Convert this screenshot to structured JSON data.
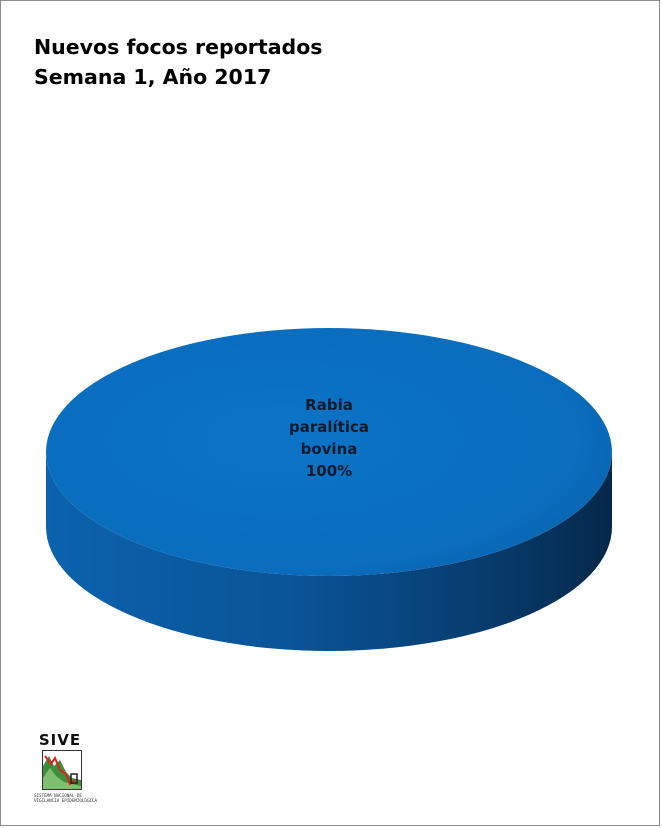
{
  "chart_data": {
    "type": "pie",
    "title": [
      "Nuevos focos reportados",
      "Semana 1, Año 2017"
    ],
    "slices": [
      {
        "label_lines": [
          "Rabia",
          "paralítica",
          "bovina"
        ],
        "value": 100,
        "value_label": "100%",
        "color": "#0a6ec0"
      }
    ],
    "legend": "none",
    "style": "3d"
  },
  "logo": {
    "name": "SIVE",
    "caption_lines": [
      "SISTEMA NACIONAL DE",
      "VIGILANCIA EPIDEMIOLOGICA"
    ]
  }
}
